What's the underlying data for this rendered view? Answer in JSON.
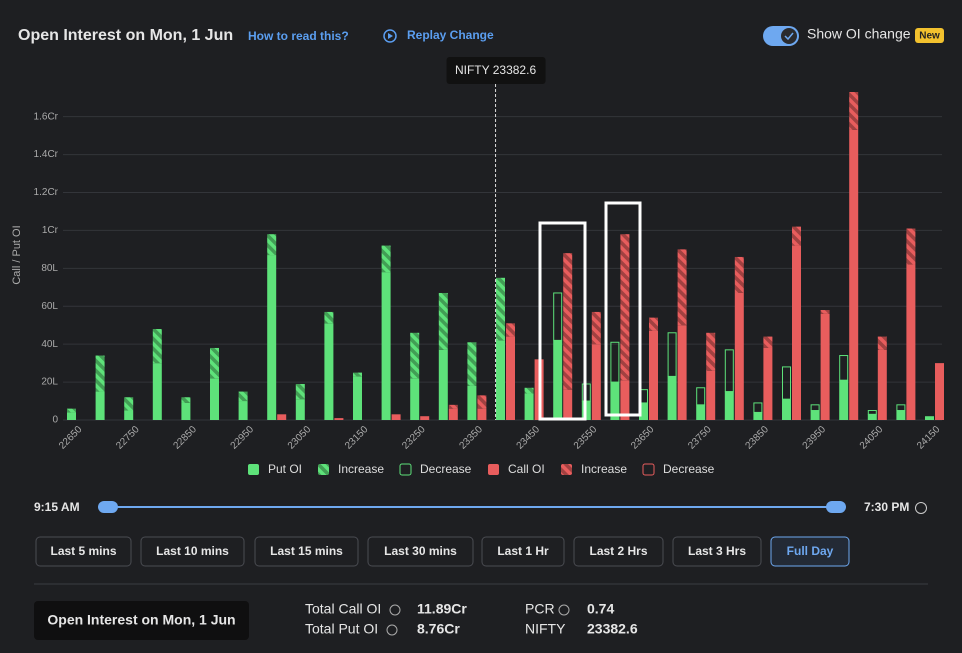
{
  "header": {
    "title": "Open Interest on Mon, 1 Jun",
    "how_to_read": "How to read this?",
    "replay": "Replay Change",
    "toggle_label": "Show OI change",
    "badge": "New"
  },
  "chart_data": {
    "type": "bar",
    "y_label": "Call / Put OI",
    "annotation": "NIFTY 23382.6",
    "spot": 23382.6,
    "categories": [
      "22650",
      null,
      "22750",
      null,
      "22850",
      null,
      "22950",
      null,
      "23050",
      null,
      "23150",
      null,
      "23250",
      null,
      "23350",
      null,
      "23450",
      null,
      "23550",
      null,
      "23650",
      null,
      "23750",
      null,
      "23850",
      null,
      "23950",
      null,
      "24050",
      null,
      "24150"
    ],
    "series": [
      {
        "name": "Put OI",
        "color": "#5ee27a",
        "style": "solid",
        "values": [
          4,
          15,
          5,
          30,
          9,
          22,
          10,
          87,
          11,
          51,
          23,
          78,
          22,
          37,
          18,
          42,
          14,
          42,
          10,
          20,
          9,
          23,
          8,
          15,
          4,
          11,
          5,
          21,
          3,
          5,
          2
        ]
      },
      {
        "name": "Increase",
        "color": "#5ee27a",
        "style": "hatched",
        "values": [
          2,
          19,
          7,
          18,
          3,
          16,
          5,
          11,
          8,
          6,
          2,
          14,
          24,
          30,
          23,
          33,
          3,
          null,
          null,
          null,
          null,
          null,
          null,
          null,
          null,
          null,
          null,
          null,
          null,
          null,
          null
        ]
      },
      {
        "name": "Decrease",
        "color": "#5ee27a",
        "style": "outline",
        "values": [
          null,
          null,
          null,
          null,
          null,
          null,
          null,
          null,
          null,
          null,
          null,
          null,
          null,
          null,
          null,
          null,
          null,
          25,
          9,
          21,
          7,
          23,
          9,
          22,
          5,
          17,
          3,
          13,
          2,
          3,
          null
        ]
      },
      {
        "name": "Call OI",
        "color": "#e85d5d",
        "style": "solid",
        "values": [
          null,
          null,
          null,
          null,
          null,
          null,
          null,
          3,
          null,
          1,
          null,
          3,
          2,
          6,
          6,
          44,
          32,
          16,
          40,
          21,
          47,
          50,
          26,
          67,
          38,
          92,
          56,
          153,
          37,
          82,
          30
        ]
      },
      {
        "name": "Increase",
        "color": "#e85d5d",
        "style": "hatched",
        "values": [
          null,
          null,
          null,
          null,
          null,
          null,
          null,
          null,
          null,
          null,
          null,
          null,
          null,
          2,
          7,
          7,
          null,
          72,
          17,
          77,
          7,
          40,
          20,
          19,
          6,
          10,
          2,
          20,
          7,
          19,
          null
        ]
      },
      {
        "name": "Decrease",
        "color": "#e85d5d",
        "style": "outline",
        "values": [
          null,
          null,
          null,
          null,
          null,
          null,
          null,
          null,
          null,
          null,
          null,
          null,
          null,
          null,
          null,
          null,
          null,
          null,
          null,
          null,
          null,
          null,
          null,
          null,
          null,
          null,
          null,
          null,
          null,
          null,
          null
        ]
      }
    ],
    "ylim": [
      0,
      173
    ],
    "yticks": [
      0,
      {
        "value": 20,
        "label": "20L"
      },
      {
        "value": 40,
        "label": "40L"
      },
      {
        "value": 60,
        "label": "60L"
      },
      {
        "value": 80,
        "label": "80L"
      },
      {
        "value": 100,
        "label": "1Cr"
      },
      {
        "value": 120,
        "label": "1.2Cr"
      },
      {
        "value": 140,
        "label": "1.4Cr"
      },
      {
        "value": 160,
        "label": "1.6Cr"
      }
    ],
    "grid": true
  },
  "slider": {
    "start": "9:15 AM",
    "end": "7:30 PM"
  },
  "buttons": [
    "Last 5 mins",
    "Last 10 mins",
    "Last 15 mins",
    "Last 30 mins",
    "Last 1 Hr",
    "Last 2 Hrs",
    "Last 3 Hrs",
    "Full Day"
  ],
  "summary": {
    "button": "Open Interest on Mon, 1 Jun",
    "total_call_label": "Total Call OI",
    "total_call": "11.89Cr",
    "total_put_label": "Total Put OI",
    "total_put": "8.76Cr",
    "pcr_label": "PCR",
    "pcr": 0.74,
    "nifty_label": "NIFTY",
    "nifty": 23382.6
  }
}
